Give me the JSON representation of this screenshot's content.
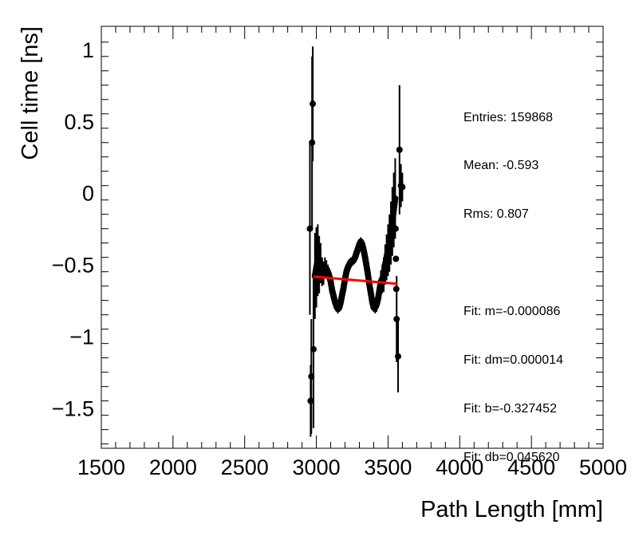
{
  "chart_data": {
    "type": "scatter",
    "title": "",
    "xlabel": "Path Length [mm]",
    "ylabel": "Cell time [ns]",
    "xlim": [
      1500,
      5000
    ],
    "ylim": [
      -1.78,
      1.16
    ],
    "xticks": [
      1500,
      2000,
      2500,
      3000,
      3500,
      4000,
      4500,
      5000
    ],
    "xtick_labels": [
      "1500",
      "2000",
      "2500",
      "3000",
      "3500",
      "4000",
      "4500",
      "5000"
    ],
    "yticks": [
      1,
      0.5,
      0,
      -0.5,
      -1,
      -1.5
    ],
    "ytick_labels": [
      "1",
      "0.5",
      "0",
      "−0.5",
      "−1",
      "−1.5"
    ],
    "stats": {
      "entries": "Entries: 159868",
      "mean": "Mean: -0.593",
      "rms": "Rms: 0.807",
      "fit_m": "Fit: m=-0.000086",
      "fit_dm": "Fit: dm=0.000014",
      "fit_b": "Fit: b=-0.327452",
      "fit_db": "Fit: db=0.045620"
    },
    "series": [
      {
        "name": "data",
        "x": [
          2955,
          2960,
          2965,
          2970,
          2975,
          2980,
          2990,
          3000,
          3010,
          3020,
          3030,
          3040,
          3050,
          3060,
          3070,
          3080,
          3090,
          3100,
          3110,
          3120,
          3130,
          3140,
          3150,
          3160,
          3170,
          3180,
          3190,
          3200,
          3210,
          3220,
          3230,
          3240,
          3250,
          3260,
          3270,
          3280,
          3290,
          3300,
          3310,
          3320,
          3330,
          3340,
          3350,
          3360,
          3370,
          3380,
          3390,
          3400,
          3410,
          3420,
          3430,
          3440,
          3450,
          3460,
          3470,
          3480,
          3490,
          3500,
          3510,
          3520,
          3530,
          3540,
          3550,
          3560,
          3570,
          3580,
          3590,
          3600
        ],
        "y": [
          -0.25,
          -1.45,
          -1.28,
          0.35,
          0.62,
          -1.09,
          -0.58,
          -0.52,
          -0.47,
          -0.5,
          -0.49,
          -0.55,
          -0.56,
          -0.52,
          -0.53,
          -0.55,
          -0.58,
          -0.62,
          -0.68,
          -0.72,
          -0.76,
          -0.79,
          -0.81,
          -0.8,
          -0.76,
          -0.71,
          -0.66,
          -0.6,
          -0.55,
          -0.52,
          -0.5,
          -0.48,
          -0.48,
          -0.47,
          -0.45,
          -0.42,
          -0.39,
          -0.36,
          -0.34,
          -0.36,
          -0.4,
          -0.45,
          -0.51,
          -0.57,
          -0.64,
          -0.7,
          -0.76,
          -0.8,
          -0.8,
          -0.78,
          -0.74,
          -0.68,
          -0.62,
          -0.6,
          -0.57,
          -0.5,
          -0.45,
          -0.4,
          -0.35,
          -0.28,
          -0.2,
          -0.12,
          -0.04,
          -0.88,
          -1.14,
          0.3,
          0.05,
          0.04
        ],
        "yerr": [
          0.6,
          0.25,
          0.4,
          0.6,
          0.4,
          0.55,
          0.3,
          0.28,
          0.25,
          0.2,
          0.14,
          0.1,
          0.08,
          0.07,
          0.06,
          0.05,
          0.04,
          0.04,
          0.03,
          0.03,
          0.03,
          0.03,
          0.03,
          0.03,
          0.03,
          0.03,
          0.03,
          0.03,
          0.03,
          0.03,
          0.03,
          0.03,
          0.03,
          0.03,
          0.03,
          0.03,
          0.03,
          0.03,
          0.03,
          0.03,
          0.03,
          0.03,
          0.03,
          0.03,
          0.03,
          0.03,
          0.03,
          0.03,
          0.04,
          0.05,
          0.06,
          0.07,
          0.08,
          0.1,
          0.12,
          0.14,
          0.16,
          0.18,
          0.2,
          0.22,
          0.24,
          0.26,
          0.28,
          0.3,
          0.25,
          0.45,
          0.15,
          0.1
        ]
      },
      {
        "name": "fit",
        "type": "line",
        "color": "#ff0000",
        "x": [
          2980,
          3560
        ],
        "y": [
          -0.584,
          -0.634
        ]
      }
    ]
  }
}
